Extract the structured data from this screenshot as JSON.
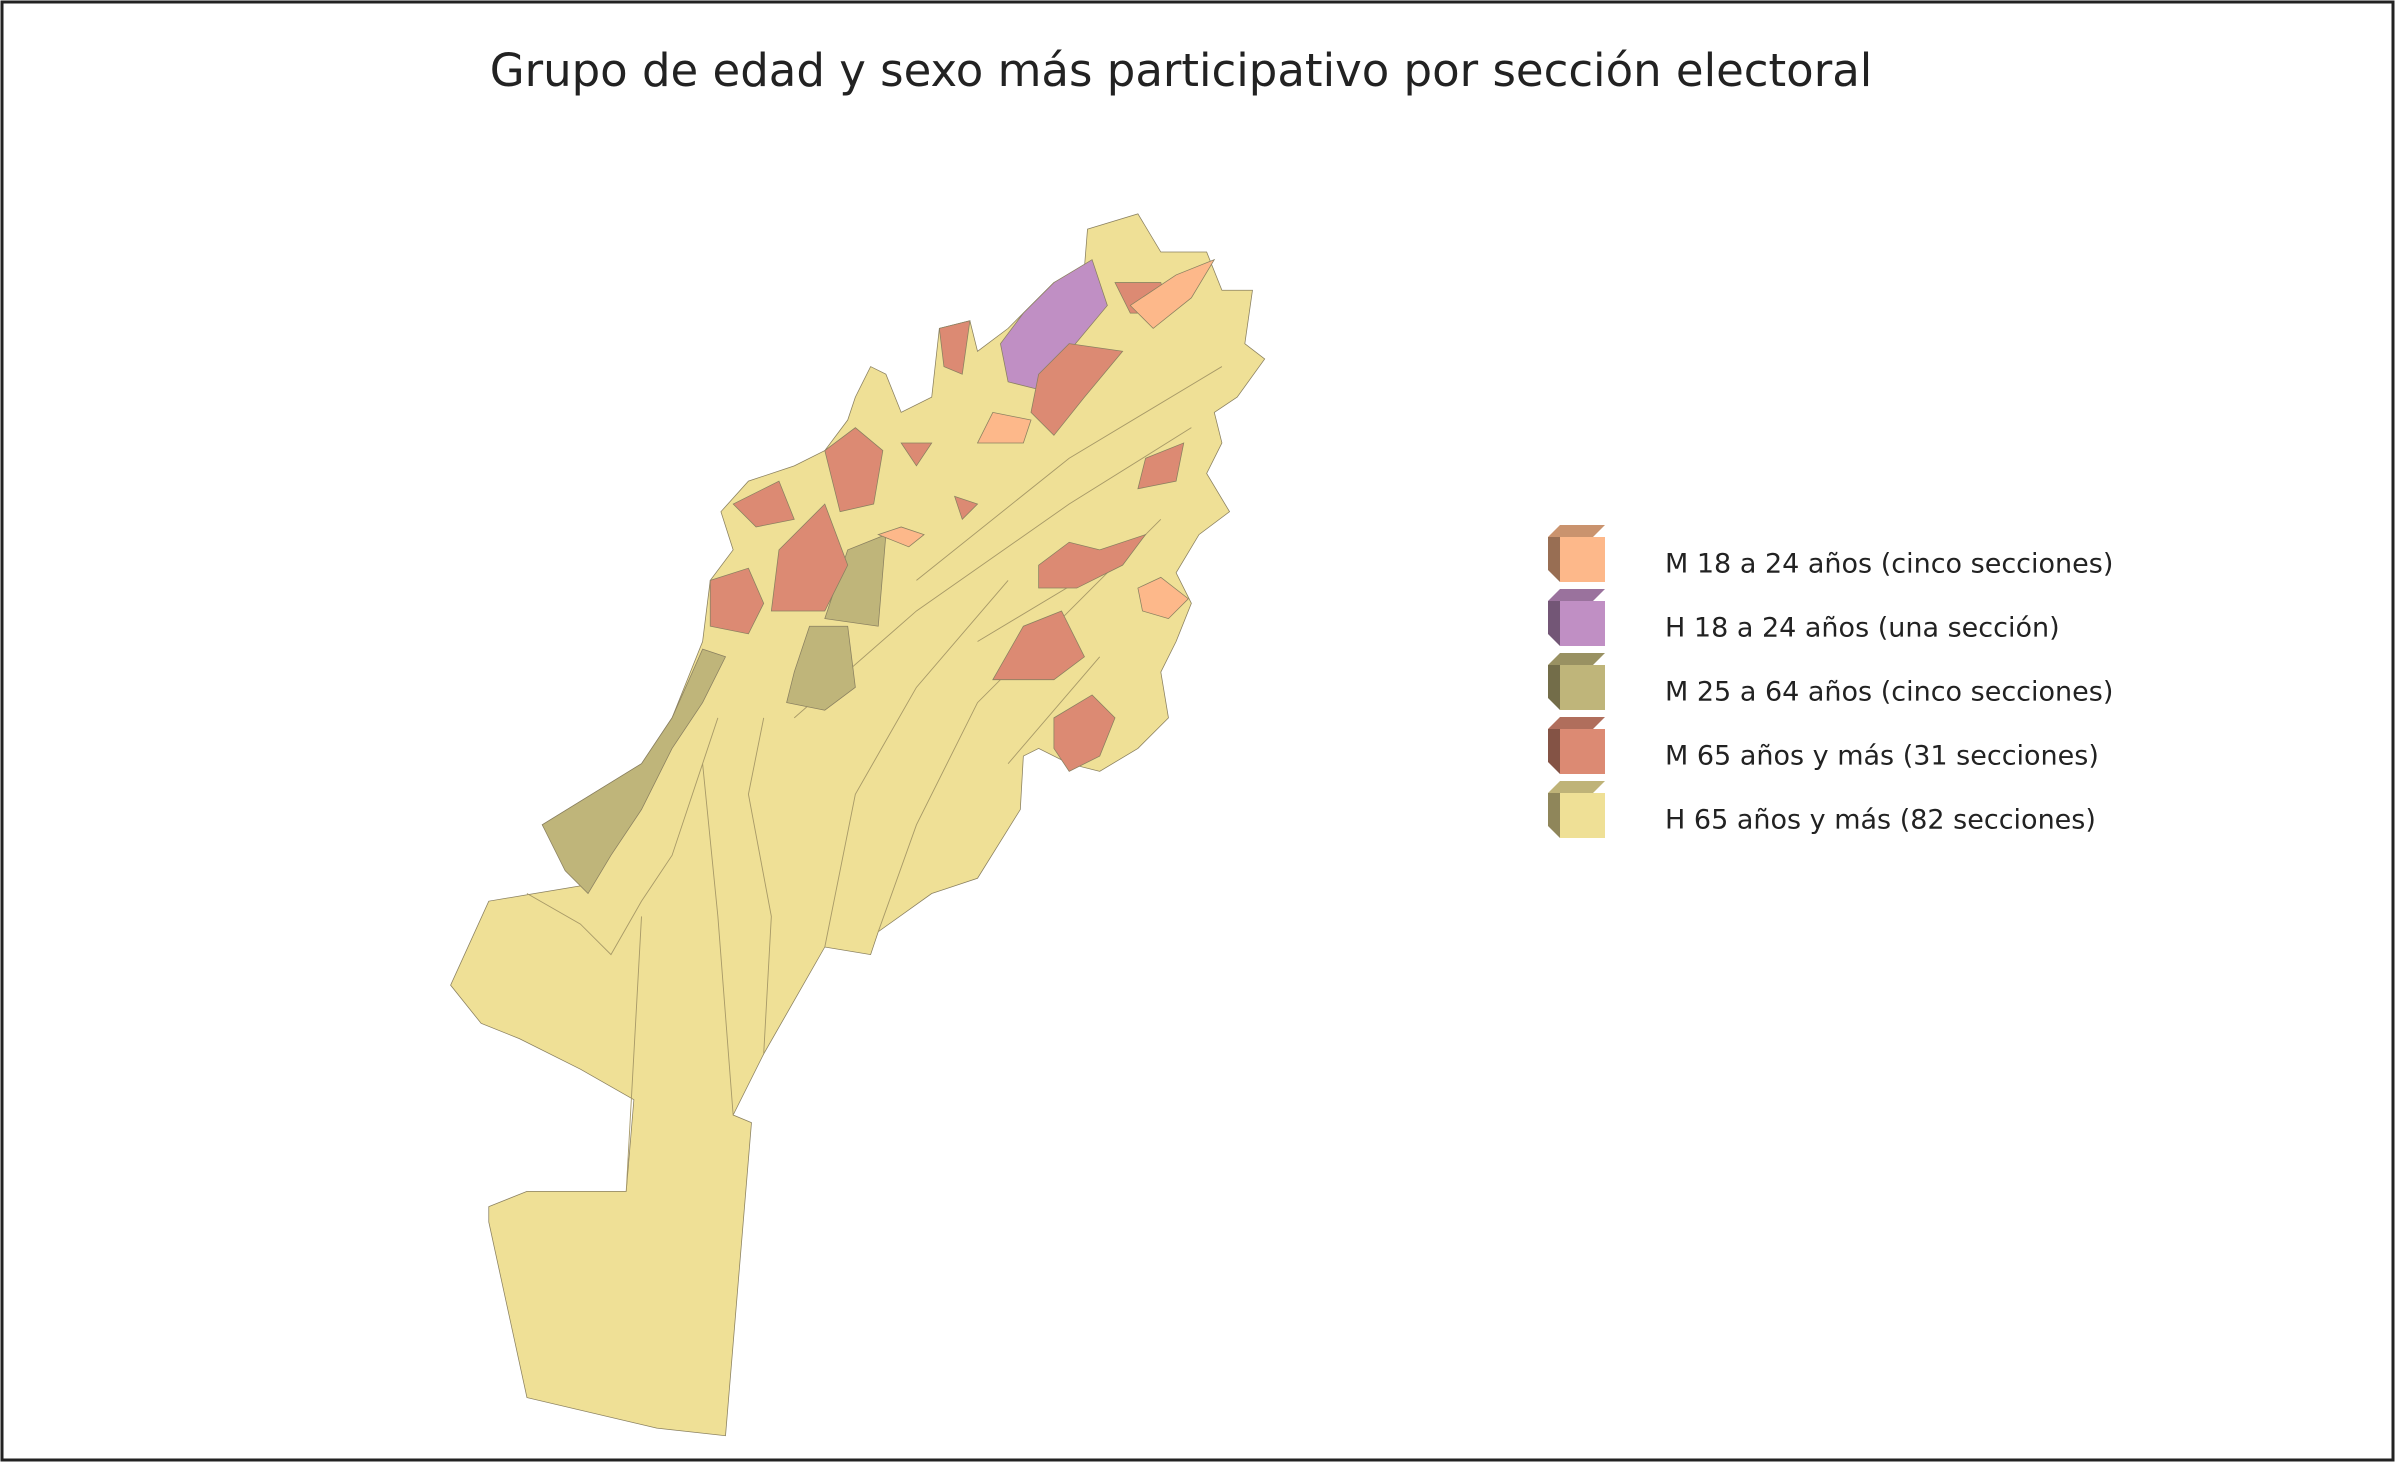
{
  "title": "Grupo de edad y sexo más participativo por sección electoral",
  "legend": [
    {
      "label": "M 18 a 24 años (cinco secciones)",
      "color": "#fdb88a"
    },
    {
      "label": "H 18 a 24 años (una sección)",
      "color": "#c08fc4"
    },
    {
      "label": "M 25 a 64 años (cinco secciones)",
      "color": "#bfb57a"
    },
    {
      "label": "M 65 años y más (31 secciones)",
      "color": "#dc8a73"
    },
    {
      "label": "H 65 años y más (82 secciones)",
      "color": "#efe096"
    }
  ]
}
